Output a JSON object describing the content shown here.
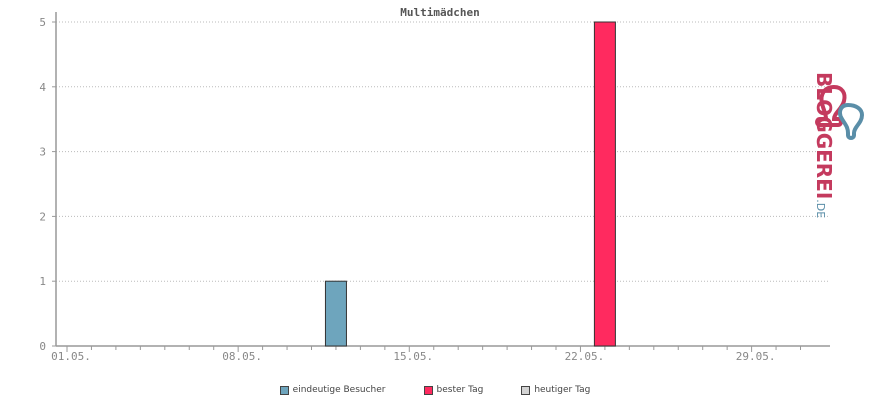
{
  "chart_data": {
    "type": "bar",
    "title": "Multimädchen",
    "x_tick_labels": [
      "01.05.",
      "08.05.",
      "15.05.",
      "22.05.",
      "29.05."
    ],
    "y_ticks": [
      "0",
      "1",
      "2",
      "3",
      "4",
      "5"
    ],
    "ylim": [
      0,
      5
    ],
    "x_day_range": [
      1,
      31
    ],
    "grid": "horizontal dotted",
    "series": [
      {
        "name": "eindeutige Besucher",
        "color": "#6ea5bd",
        "points": [
          {
            "day": 12,
            "value": 1
          }
        ]
      },
      {
        "name": "bester Tag",
        "color": "#ff2a5f",
        "points": [
          {
            "day": 23,
            "value": 5
          }
        ]
      },
      {
        "name": "heutiger Tag",
        "color": "#d3d3d3",
        "points": []
      }
    ]
  },
  "legend": {
    "items": [
      {
        "label": "eindeutige Besucher",
        "color": "#6ea5bd"
      },
      {
        "label": "bester Tag",
        "color": "#ff2a5f"
      },
      {
        "label": "heutiger Tag",
        "color": "#d3d3d3"
      }
    ]
  },
  "logo": {
    "main": "BLOGGEREI",
    "suffix": ".DE",
    "colors": {
      "main": "#c43a5e",
      "accent": "#5a8ea8"
    }
  }
}
